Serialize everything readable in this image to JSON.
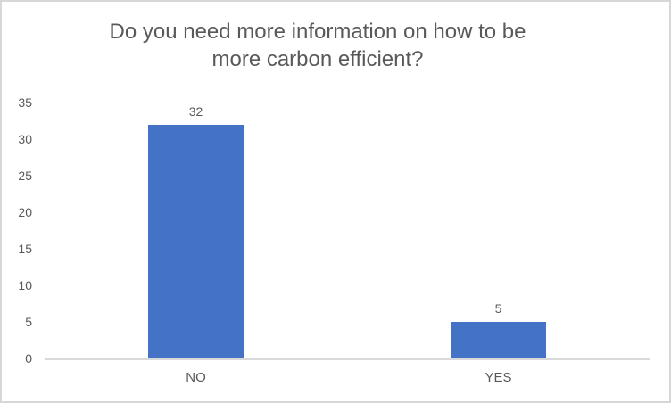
{
  "chart_data": {
    "type": "bar",
    "title": "Do you need more information on how to be more carbon efficient?",
    "categories": [
      "NO",
      "YES"
    ],
    "values": [
      32,
      5
    ],
    "data_labels": [
      "32",
      "5"
    ],
    "xlabel": "",
    "ylabel": "",
    "ylim": [
      0,
      35
    ],
    "ytick_step": 5,
    "yticks": [
      0,
      5,
      10,
      15,
      20,
      25,
      30,
      35
    ],
    "grid": false,
    "legend": "none",
    "colors": {
      "bar": "#4472C4",
      "text": "#595959",
      "axis_line": "#D9D9D9",
      "frame_border": "#D7D7D7",
      "background": "#FFFFFF"
    }
  }
}
